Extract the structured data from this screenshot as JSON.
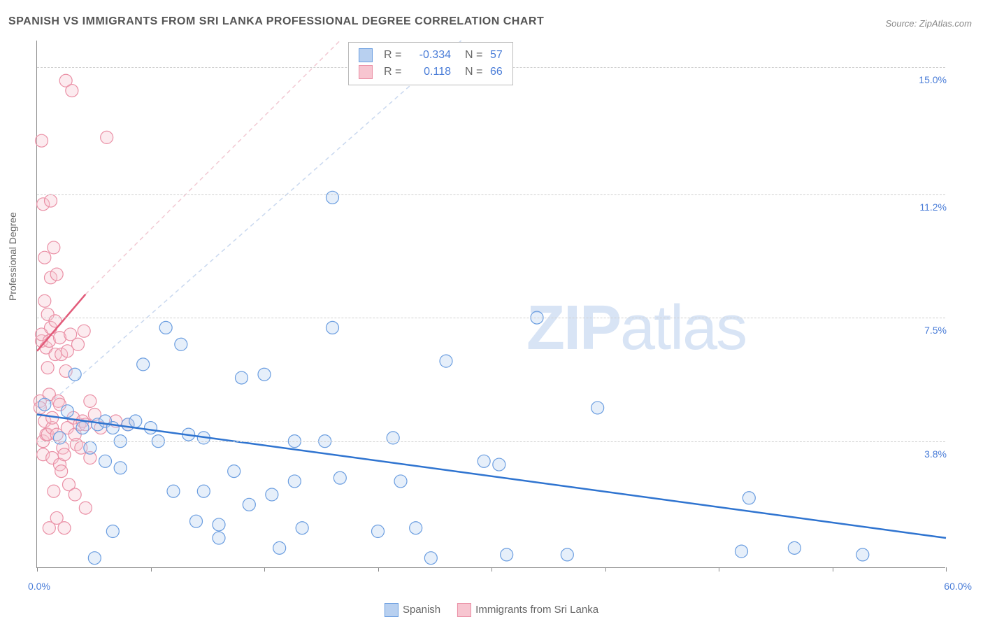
{
  "title": "SPANISH VS IMMIGRANTS FROM SRI LANKA PROFESSIONAL DEGREE CORRELATION CHART",
  "source_prefix": "Source: ",
  "source_name": "ZipAtlas.com",
  "y_axis_title": "Professional Degree",
  "watermark_bold": "ZIP",
  "watermark_light": "atlas",
  "chart": {
    "type": "scatter",
    "background_color": "#ffffff",
    "grid_color": "#d0d0d0",
    "axis_color": "#888888",
    "xlim": [
      0,
      60
    ],
    "ylim": [
      0,
      15.8
    ],
    "x_ticks": [
      0,
      7.5,
      15,
      22.5,
      30,
      37.5,
      45,
      52.5,
      60
    ],
    "y_ticks": [
      3.8,
      7.5,
      11.2,
      15.0
    ],
    "y_tick_labels": [
      "3.8%",
      "7.5%",
      "11.2%",
      "15.0%"
    ],
    "x_min_label": "0.0%",
    "x_max_label": "60.0%",
    "marker_radius": 9,
    "marker_stroke_width": 1.2,
    "marker_fill_opacity": 0.35,
    "series": [
      {
        "name": "Spanish",
        "color_fill": "#b8d0f0",
        "color_stroke": "#6a9de0",
        "r": -0.334,
        "n": 57,
        "trend": {
          "x1": 0,
          "y1": 4.6,
          "x2": 60,
          "y2": 0.9,
          "color": "#2f74d0",
          "width": 2.5,
          "dash": null,
          "extrap_dash": "6,5",
          "extrap_x2": 60,
          "extrap_y2": 15.8
        },
        "points": [
          [
            0.5,
            4.9
          ],
          [
            1.5,
            3.9
          ],
          [
            2.0,
            4.7
          ],
          [
            2.5,
            5.8
          ],
          [
            3.0,
            4.2
          ],
          [
            3.5,
            3.6
          ],
          [
            3.8,
            0.3
          ],
          [
            4.0,
            4.3
          ],
          [
            4.5,
            3.2
          ],
          [
            4.5,
            4.4
          ],
          [
            5.0,
            1.1
          ],
          [
            5.0,
            4.2
          ],
          [
            5.5,
            3.8
          ],
          [
            5.5,
            3.0
          ],
          [
            6.0,
            4.3
          ],
          [
            6.5,
            4.4
          ],
          [
            7.0,
            6.1
          ],
          [
            7.5,
            4.2
          ],
          [
            8.0,
            3.8
          ],
          [
            8.5,
            7.2
          ],
          [
            9.0,
            2.3
          ],
          [
            9.5,
            6.7
          ],
          [
            10.0,
            4.0
          ],
          [
            10.5,
            1.4
          ],
          [
            11.0,
            2.3
          ],
          [
            11.0,
            3.9
          ],
          [
            12.0,
            0.9
          ],
          [
            12.0,
            1.3
          ],
          [
            13.0,
            2.9
          ],
          [
            13.5,
            5.7
          ],
          [
            14.0,
            1.9
          ],
          [
            15.0,
            5.8
          ],
          [
            15.5,
            2.2
          ],
          [
            16.0,
            0.6
          ],
          [
            17.0,
            2.6
          ],
          [
            17.0,
            3.8
          ],
          [
            17.5,
            1.2
          ],
          [
            19.0,
            3.8
          ],
          [
            19.5,
            7.2
          ],
          [
            19.5,
            11.1
          ],
          [
            20.0,
            2.7
          ],
          [
            22.5,
            1.1
          ],
          [
            23.5,
            3.9
          ],
          [
            24.0,
            2.6
          ],
          [
            25.0,
            1.2
          ],
          [
            26.0,
            0.3
          ],
          [
            27.0,
            6.2
          ],
          [
            29.5,
            3.2
          ],
          [
            30.5,
            3.1
          ],
          [
            31.0,
            0.4
          ],
          [
            33.0,
            7.5
          ],
          [
            35.0,
            0.4
          ],
          [
            37.0,
            4.8
          ],
          [
            46.5,
            0.5
          ],
          [
            47.0,
            2.1
          ],
          [
            50.0,
            0.6
          ],
          [
            54.5,
            0.4
          ]
        ]
      },
      {
        "name": "Immigrants from Sri Lanka",
        "color_fill": "#f7c5d0",
        "color_stroke": "#ea8fa5",
        "r": 0.118,
        "n": 66,
        "trend": {
          "x1": 0,
          "y1": 6.5,
          "x2": 3.2,
          "y2": 8.2,
          "color": "#e25b7a",
          "width": 2.5,
          "dash": null,
          "extrap_dash": "6,5",
          "extrap_x2": 20,
          "extrap_y2": 15.8
        },
        "points": [
          [
            0.2,
            5.0
          ],
          [
            0.2,
            4.8
          ],
          [
            0.3,
            12.8
          ],
          [
            0.3,
            6.8
          ],
          [
            0.3,
            7.0
          ],
          [
            0.4,
            10.9
          ],
          [
            0.4,
            3.8
          ],
          [
            0.4,
            3.4
          ],
          [
            0.5,
            8.0
          ],
          [
            0.5,
            4.4
          ],
          [
            0.5,
            9.3
          ],
          [
            0.6,
            4.0
          ],
          [
            0.6,
            6.6
          ],
          [
            0.7,
            6.0
          ],
          [
            0.7,
            7.6
          ],
          [
            0.7,
            4.0
          ],
          [
            0.8,
            5.2
          ],
          [
            0.8,
            6.8
          ],
          [
            0.8,
            1.2
          ],
          [
            0.9,
            7.2
          ],
          [
            0.9,
            8.7
          ],
          [
            0.9,
            11.0
          ],
          [
            1.0,
            4.2
          ],
          [
            1.0,
            4.5
          ],
          [
            1.0,
            3.3
          ],
          [
            1.1,
            9.6
          ],
          [
            1.1,
            2.3
          ],
          [
            1.2,
            7.4
          ],
          [
            1.2,
            6.4
          ],
          [
            1.3,
            4.0
          ],
          [
            1.3,
            1.5
          ],
          [
            1.3,
            8.8
          ],
          [
            1.4,
            5.0
          ],
          [
            1.5,
            3.1
          ],
          [
            1.5,
            6.9
          ],
          [
            1.5,
            4.9
          ],
          [
            1.6,
            6.4
          ],
          [
            1.6,
            2.9
          ],
          [
            1.7,
            3.6
          ],
          [
            1.8,
            1.2
          ],
          [
            1.8,
            3.4
          ],
          [
            1.9,
            5.9
          ],
          [
            1.9,
            14.6
          ],
          [
            2.0,
            4.2
          ],
          [
            2.0,
            6.5
          ],
          [
            2.1,
            2.5
          ],
          [
            2.2,
            7.0
          ],
          [
            2.3,
            14.3
          ],
          [
            2.4,
            4.5
          ],
          [
            2.5,
            2.2
          ],
          [
            2.5,
            4.0
          ],
          [
            2.6,
            3.7
          ],
          [
            2.7,
            6.7
          ],
          [
            2.8,
            4.3
          ],
          [
            2.9,
            3.6
          ],
          [
            3.0,
            4.4
          ],
          [
            3.1,
            7.1
          ],
          [
            3.2,
            1.8
          ],
          [
            3.2,
            4.3
          ],
          [
            3.5,
            5.0
          ],
          [
            3.5,
            3.3
          ],
          [
            3.8,
            4.6
          ],
          [
            4.2,
            4.2
          ],
          [
            4.6,
            12.9
          ],
          [
            5.2,
            4.4
          ],
          [
            6.0,
            4.3
          ]
        ]
      }
    ]
  },
  "legend": {
    "items": [
      {
        "label": "Spanish",
        "fill": "#b8d0f0",
        "stroke": "#6a9de0"
      },
      {
        "label": "Immigrants from Sri Lanka",
        "fill": "#f7c5d0",
        "stroke": "#ea8fa5"
      }
    ]
  },
  "stats_box": {
    "rows": [
      {
        "swatch_fill": "#b8d0f0",
        "swatch_stroke": "#6a9de0",
        "r": "-0.334",
        "n": "57"
      },
      {
        "swatch_fill": "#f7c5d0",
        "swatch_stroke": "#ea8fa5",
        "r": "0.118",
        "n": "66"
      }
    ],
    "r_label": "R =",
    "n_label": "N ="
  }
}
